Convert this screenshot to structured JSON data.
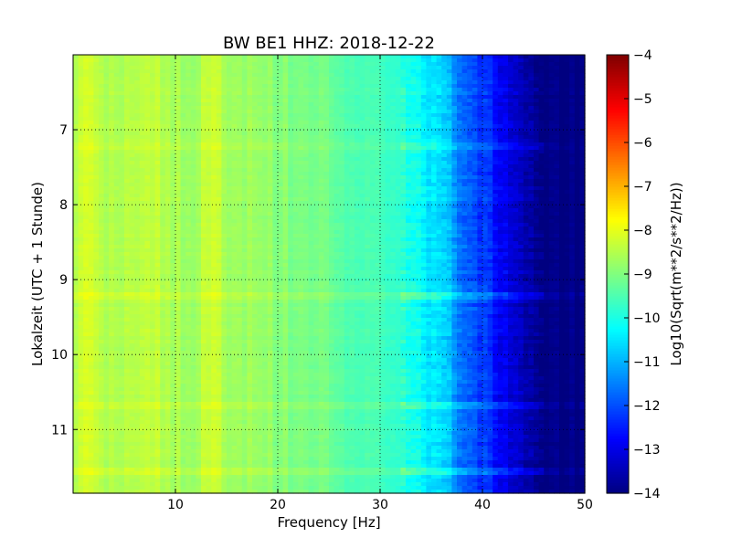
{
  "chart_data": {
    "type": "heatmap",
    "title": "BW BE1 HHZ: 2018-12-22",
    "xlabel": "Frequency [Hz]",
    "ylabel": "Lokalzeit (UTC + 1 Stunde)",
    "xlim": [
      0,
      50
    ],
    "ylim": [
      6,
      11.85
    ],
    "y_inverted": true,
    "grid": true,
    "x_ticks": [
      10,
      20,
      30,
      40,
      50
    ],
    "y_ticks": [
      7,
      8,
      9,
      10,
      11
    ],
    "colormap": "jet",
    "colorbar": {
      "label": "Log10(Sqrt(m**2/s**2/Hz))",
      "range": [
        -14,
        -4
      ],
      "ticks": [
        -14,
        -13,
        -12,
        -11,
        -10,
        -9,
        -8,
        -7,
        -6,
        -5,
        -4
      ]
    },
    "frequency_profile": {
      "frequency_hz": [
        0,
        1,
        2,
        3,
        5,
        8,
        10,
        12,
        13,
        14,
        15,
        18,
        20,
        25,
        30,
        33,
        35,
        37,
        38,
        40,
        42,
        43,
        44,
        45,
        46,
        50
      ],
      "level": [
        -8.8,
        -7.9,
        -8.2,
        -8.5,
        -8.5,
        -8.4,
        -8.6,
        -8.6,
        -8.2,
        -8.2,
        -8.6,
        -8.8,
        -8.9,
        -9.2,
        -9.6,
        -10.0,
        -10.5,
        -11.0,
        -11.6,
        -12.2,
        -12.8,
        -13.1,
        -13.4,
        -13.9,
        -14.0,
        -14.0
      ]
    },
    "time_features": [
      {
        "hour": 9.22,
        "delta_db": 0.7
      },
      {
        "hour": 10.7,
        "delta_db": 0.6
      },
      {
        "hour": 11.55,
        "delta_db": 0.6
      },
      {
        "hour": 7.2,
        "delta_db": 0.4
      }
    ]
  }
}
